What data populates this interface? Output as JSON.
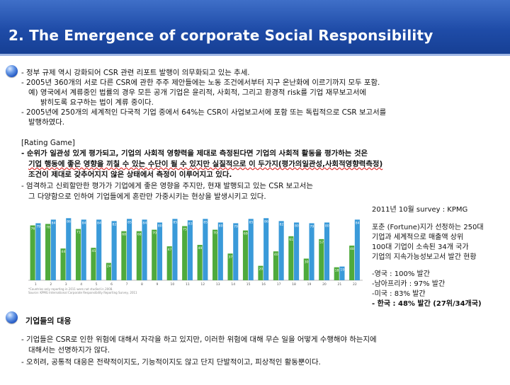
{
  "header": {
    "title": "2. The Emergence of corporate Social Responsibility"
  },
  "section1": {
    "lines": [
      "- 정부 규제  역시 강화되어 CSR 관련 리포트 발행이 의무화되고 있는 추세.",
      "- 2005년 360개의 서로 다른 CSR에 관한 주주 제안들에는 노동 조건에서부터 지구 온난화에 이르기까지  모두 포함.",
      "예) 영국에서 계류중인 법률의 경우 모든 공개 기업은 윤리적, 사회적,  그리고 환경적 risk를 기업 재무보고서에",
      "밝히도록 요구하는 법이 계류 중이다.",
      "- 2005년에 250개의 세계적인 다국적 기업 중에서 64%는 CSR이 사업보고서에  포함 또는 독립적으로 CSR 보고서를",
      "발행하였다."
    ],
    "rating_title": "[Rating Game]",
    "rating_lines": [
      "- 순위가 일관성 있게 평가되고, 기업의 사회적 영향력을 제대로 측정된다면 기업의 사회적 활동을 평가하는 것은",
      "기업 행동에 좋은 영향을 끼칠 수 있는 수단이 될 수 있지만 실질적으로 이 두가지(평가의일관성,사회적영향력측정)",
      "조건이 제대로 갖추어지지 않은 상태에서 측정이 이루어지고 있다."
    ],
    "after_lines": [
      "- 엄격하고 신뢰할만한 평가가 기업에게 좋은 영향을 주지만,  현재  발행되고 있는 CSR 보고서는",
      "그 다양함으로 인하여 기업들에게 혼란만 가중시키는 현상을 발생시키고 있다."
    ]
  },
  "chart_data": {
    "type": "bar",
    "categories": [
      "1",
      "2",
      "3",
      "4",
      "5",
      "6",
      "7",
      "8",
      "9",
      "10",
      "11",
      "12",
      "13",
      "14",
      "15",
      "16",
      "17",
      "18",
      "19",
      "20",
      "21",
      "22"
    ],
    "series": [
      {
        "name": "",
        "values": [
          76,
          78,
          44,
          71,
          45,
          24,
          68,
          68,
          70,
          47,
          75,
          49,
          70,
          37,
          69,
          20,
          40,
          61,
          30,
          57,
          18,
          48
        ]
      },
      {
        "name": "",
        "values": [
          79,
          84,
          86,
          84,
          84,
          82,
          85,
          84,
          80,
          85,
          83,
          85,
          80,
          79,
          85,
          86,
          82,
          80,
          79,
          80,
          19,
          84
        ]
      }
    ],
    "labels": [
      "80",
      "80",
      "81",
      "80",
      "79",
      "80",
      "80",
      "80",
      "79",
      "85",
      "82",
      "84",
      "83",
      "82",
      "80",
      "81",
      "78",
      "80",
      "75",
      "73",
      "17",
      "48"
    ],
    "ylim": [
      0,
      100
    ],
    "colors": {
      "a": "#4faa3c",
      "b": "#3a9ad9"
    },
    "footnote_1": "*Countries only reporting in 2011 were not studied in 2008.",
    "footnote_2": "Source: KPMG International Corporate Responsibility Reporting Survey, 2011"
  },
  "side": {
    "lines": [
      "2011년 10월  survey  : KPMG",
      "",
      "포춘 (Fortune)지가 선정하는 250대",
      "기업과 세계적으로 매출액 상위",
      "100대 기업이 소속된 34개 국가",
      "기업의 지속가능성보고서 발간 현황",
      "",
      "-영국 : 100%  발간",
      "-남아프리카 : 97%  발간",
      "-미국 : 83%   발간"
    ],
    "last": "- 한국 : 48% 발간  (27위/34개국)"
  },
  "section2": {
    "title": "기업들의 대응",
    "lines": [
      "- 기업들은 CSR로 인한 위험에 대해서 자각을 하고 있지만,  이러한 위험에 대해 무슨 일을 어떻게 수행해야 하는지에",
      "대해서는 선명하지가  않다.",
      "- 오히려,  공통적 대응은 전략적이지도,  기능적이지도  않고 단지 단발적이고,  피상적인 활동뿐이다."
    ]
  }
}
